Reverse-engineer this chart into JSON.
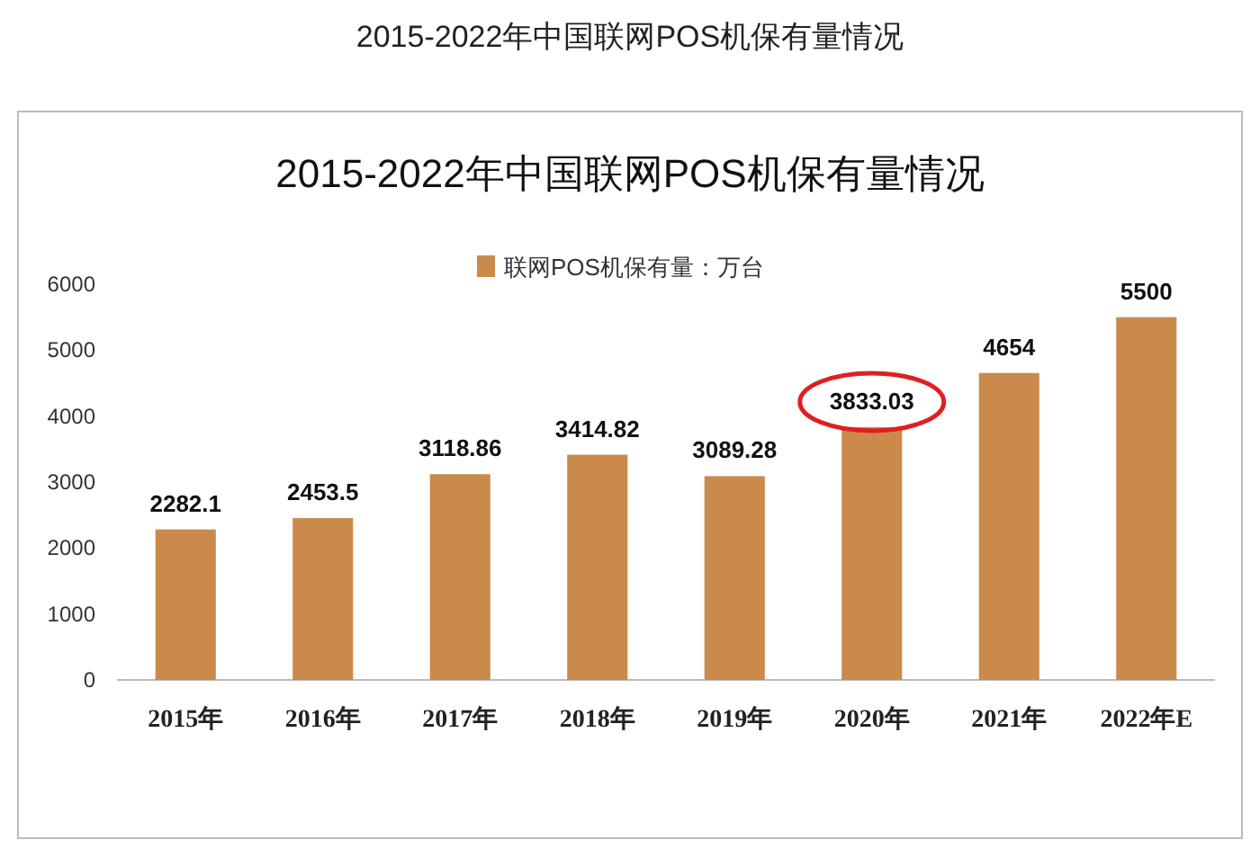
{
  "chart_data": {
    "type": "bar",
    "title": "2015-2022年中国联网POS机保有量情况",
    "subtitle": "2015-2022年中国联网POS机保有量情况",
    "categories": [
      "2015年",
      "2016年",
      "2017年",
      "2018年",
      "2019年",
      "2020年",
      "2021年",
      "2022年E"
    ],
    "series": [
      {
        "name": "联网POS机保有量：万台",
        "color": "#c98a4b",
        "values": [
          2282.1,
          2453.5,
          3118.86,
          3414.82,
          3089.28,
          3833.03,
          4654,
          5500
        ]
      }
    ],
    "ylim": [
      0,
      6000
    ],
    "yticks": [
      0,
      1000,
      2000,
      3000,
      4000,
      5000,
      6000
    ],
    "legend": "top",
    "grid": false,
    "data_labels": true
  }
}
